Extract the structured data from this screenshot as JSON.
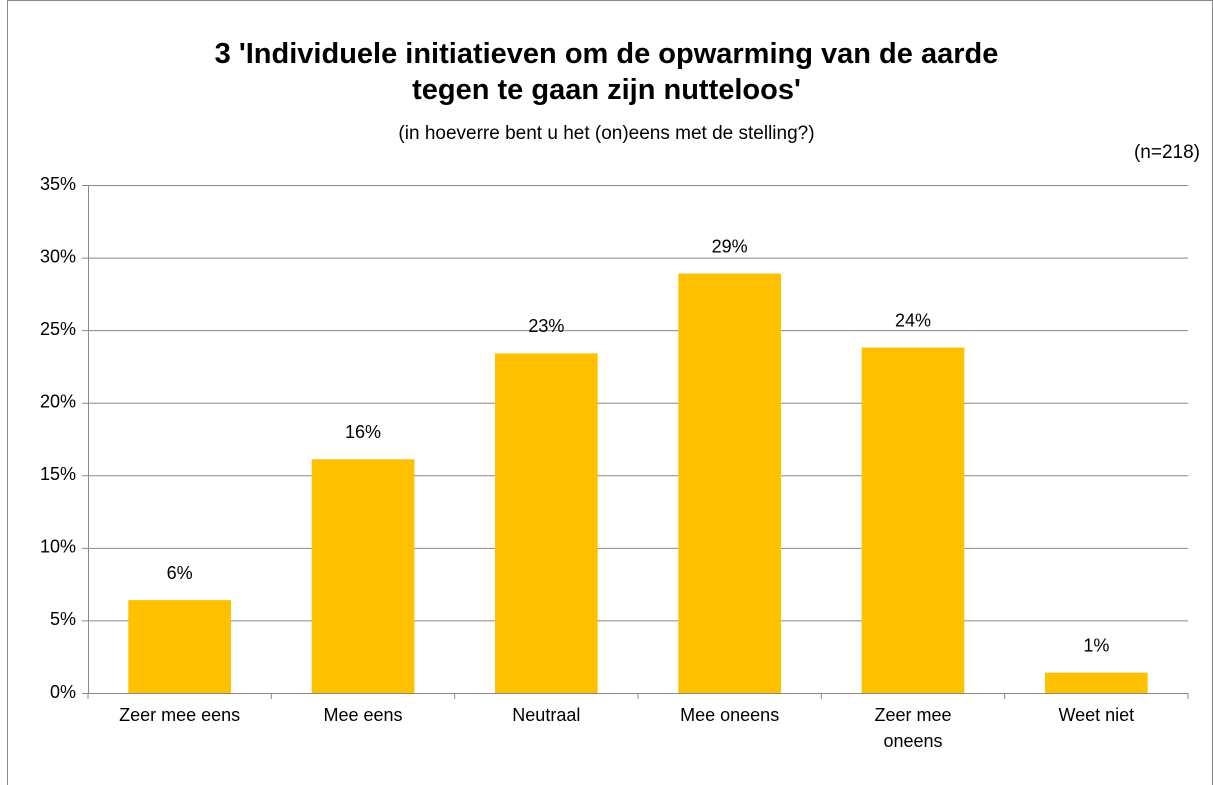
{
  "chart_data": {
    "type": "bar",
    "title": "3 'Individuele initiatieven om de opwarming van de aarde\ntegen te gaan zijn nutteloos'",
    "subtitle": "(in hoeverre bent u het (on)eens met de stelling?)",
    "annotation": "(n=218)",
    "categories": [
      "Zeer mee eens",
      "Mee eens",
      "Neutraal",
      "Mee oneens",
      "Zeer mee\noneens",
      "Weet niet"
    ],
    "values": [
      6.4,
      16.1,
      23.4,
      28.9,
      23.8,
      1.4
    ],
    "value_labels": [
      "6%",
      "16%",
      "23%",
      "29%",
      "24%",
      "1%"
    ],
    "color": "#ffc000",
    "ylim": [
      0,
      35
    ],
    "yticks": [
      {
        "value": 0,
        "label": "0%"
      },
      {
        "value": 5,
        "label": "5%"
      },
      {
        "value": 10,
        "label": "10%"
      },
      {
        "value": 15,
        "label": "15%"
      },
      {
        "value": 20,
        "label": "20%"
      },
      {
        "value": 25,
        "label": "25%"
      },
      {
        "value": 30,
        "label": "30%"
      },
      {
        "value": 35,
        "label": "35%"
      }
    ],
    "grid": true
  }
}
